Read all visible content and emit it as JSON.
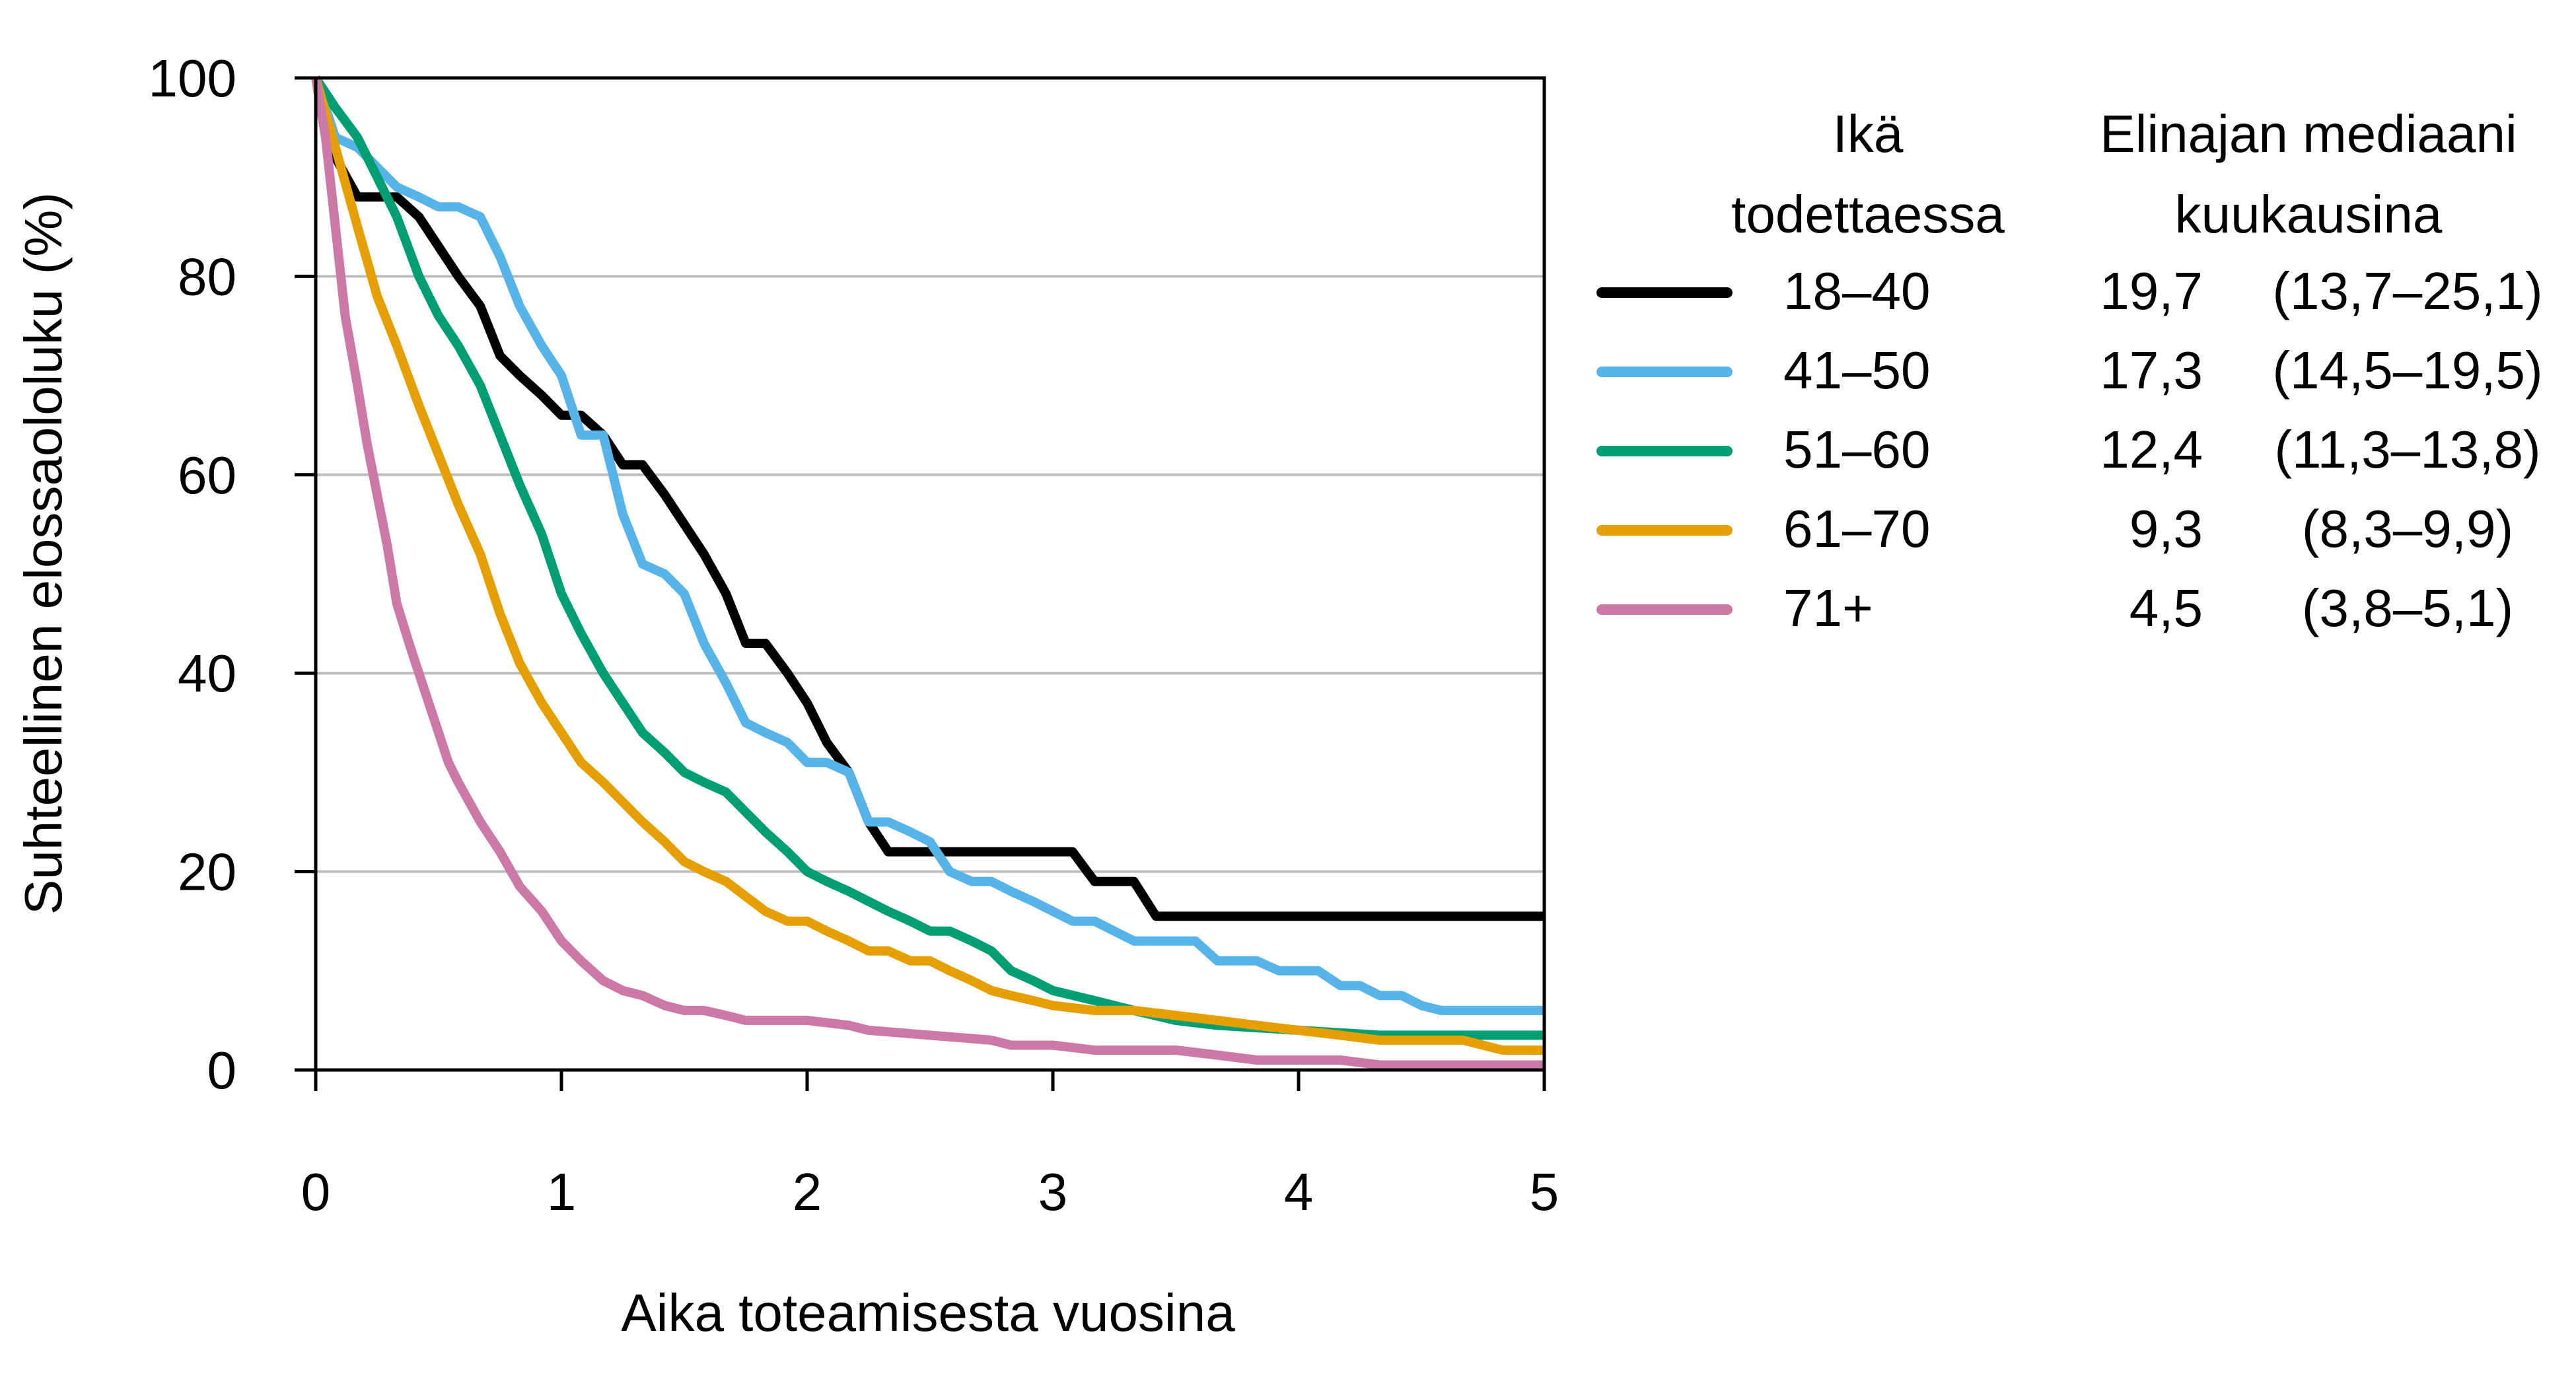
{
  "chart_data": {
    "type": "line",
    "title": "",
    "xlabel": "Aika toteamisesta vuosina",
    "ylabel": "Suhteellinen elossaololuku (%)",
    "xlim": [
      0,
      5
    ],
    "ylim": [
      0,
      100
    ],
    "xticks": [
      0,
      1,
      2,
      3,
      4,
      5
    ],
    "yticks": [
      0,
      20,
      40,
      60,
      80,
      100
    ],
    "grid": "horizontal",
    "legend": {
      "placement": "right",
      "header_age": [
        "Ikä",
        "todettaessa"
      ],
      "header_median": [
        "Elinajan mediaani",
        "kuukausina"
      ]
    },
    "series": [
      {
        "name": "18–40",
        "median": "19,7",
        "ci": "(13,7–25,1)",
        "color": "#000000",
        "x": [
          0,
          0.08,
          0.17,
          0.33,
          0.42,
          0.5,
          0.58,
          0.67,
          0.75,
          0.83,
          0.92,
          1.0,
          1.08,
          1.17,
          1.25,
          1.33,
          1.42,
          1.5,
          1.58,
          1.67,
          1.75,
          1.83,
          1.92,
          2.0,
          2.08,
          2.17,
          2.25,
          2.33,
          2.5,
          2.75,
          2.92,
          3.08,
          3.17,
          3.33,
          3.42,
          3.6,
          4.0,
          5.0
        ],
        "y": [
          100,
          92,
          88,
          88,
          86,
          83,
          80,
          77,
          72,
          70,
          68,
          66,
          66,
          64,
          61,
          61,
          58,
          55,
          52,
          48,
          43,
          43,
          40,
          37,
          33,
          30,
          25,
          22,
          22,
          22,
          22,
          22,
          19,
          19,
          15.5,
          15.5,
          15.5,
          15.5
        ]
      },
      {
        "name": "41–50",
        "median": "17,3",
        "ci": "(14,5–19,5)",
        "color": "#56B4E9",
        "x": [
          0,
          0.08,
          0.17,
          0.25,
          0.33,
          0.42,
          0.5,
          0.58,
          0.67,
          0.75,
          0.83,
          0.92,
          1.0,
          1.08,
          1.17,
          1.25,
          1.33,
          1.42,
          1.5,
          1.58,
          1.67,
          1.75,
          1.83,
          1.92,
          2.0,
          2.08,
          2.17,
          2.25,
          2.33,
          2.42,
          2.5,
          2.58,
          2.67,
          2.75,
          2.83,
          2.92,
          3.0,
          3.08,
          3.17,
          3.25,
          3.33,
          3.42,
          3.5,
          3.58,
          3.67,
          3.75,
          3.83,
          3.92,
          4.0,
          4.08,
          4.17,
          4.25,
          4.33,
          4.42,
          4.5,
          4.58,
          4.67,
          5.0
        ],
        "y": [
          100,
          94,
          93,
          91,
          89,
          88,
          87,
          87,
          86,
          82,
          77,
          73,
          70,
          64,
          64,
          56,
          51,
          50,
          48,
          43,
          39,
          35,
          34,
          33,
          31,
          31,
          30,
          25,
          25,
          24,
          23,
          20,
          19,
          19,
          18,
          17,
          16,
          15,
          15,
          14,
          13,
          13,
          13,
          13,
          11,
          11,
          11,
          10,
          10,
          10,
          8.5,
          8.5,
          7.5,
          7.5,
          6.5,
          6,
          6,
          6
        ]
      },
      {
        "name": "51–60",
        "median": "12,4",
        "ci": "(11,3–13,8)",
        "color": "#009E73",
        "x": [
          0,
          0.08,
          0.17,
          0.25,
          0.33,
          0.42,
          0.5,
          0.58,
          0.67,
          0.75,
          0.83,
          0.92,
          1.0,
          1.08,
          1.17,
          1.25,
          1.33,
          1.42,
          1.5,
          1.58,
          1.67,
          1.75,
          1.83,
          1.92,
          2.0,
          2.08,
          2.17,
          2.25,
          2.33,
          2.42,
          2.5,
          2.58,
          2.67,
          2.75,
          2.83,
          2.92,
          3.0,
          3.17,
          3.33,
          3.5,
          3.67,
          4.0,
          4.33,
          4.67,
          5.0
        ],
        "y": [
          100,
          97,
          94,
          90,
          86,
          80,
          76,
          73,
          69,
          64,
          59,
          54,
          48,
          44,
          40,
          37,
          34,
          32,
          30,
          29,
          28,
          26,
          24,
          22,
          20,
          19,
          18,
          17,
          16,
          15,
          14,
          14,
          13,
          12,
          10,
          9,
          8,
          7,
          6,
          5,
          4.5,
          4,
          3.5,
          3.5,
          3.5
        ]
      },
      {
        "name": "61–70",
        "median": "9,3",
        "ci": "(8,3–9,9)",
        "color": "#E69F00",
        "x": [
          0,
          0.08,
          0.17,
          0.25,
          0.33,
          0.42,
          0.5,
          0.58,
          0.67,
          0.75,
          0.83,
          0.92,
          1.0,
          1.08,
          1.17,
          1.25,
          1.33,
          1.42,
          1.5,
          1.58,
          1.67,
          1.75,
          1.83,
          1.92,
          2.0,
          2.08,
          2.17,
          2.25,
          2.33,
          2.42,
          2.5,
          2.58,
          2.67,
          2.75,
          2.83,
          2.92,
          3.0,
          3.17,
          3.33,
          3.5,
          3.67,
          3.83,
          4.0,
          4.17,
          4.33,
          4.67,
          4.83,
          5.0
        ],
        "y": [
          100,
          93,
          85,
          78,
          73,
          67,
          62,
          57,
          52,
          46,
          41,
          37,
          34,
          31,
          29,
          27,
          25,
          23,
          21,
          20,
          19,
          17.5,
          16,
          15,
          15,
          14,
          13,
          12,
          12,
          11,
          11,
          10,
          9,
          8,
          7.5,
          7,
          6.5,
          6,
          6,
          5.5,
          5,
          4.5,
          4,
          3.5,
          3,
          3,
          2,
          2
        ]
      },
      {
        "name": "71+",
        "median": "4,5",
        "ci": "(3,8–5,1)",
        "color": "#CC79A7",
        "x": [
          0,
          0.04,
          0.08,
          0.12,
          0.17,
          0.21,
          0.25,
          0.29,
          0.33,
          0.38,
          0.42,
          0.46,
          0.5,
          0.54,
          0.58,
          0.67,
          0.75,
          0.83,
          0.92,
          1.0,
          1.08,
          1.17,
          1.25,
          1.33,
          1.42,
          1.5,
          1.58,
          1.67,
          1.75,
          1.83,
          2.0,
          2.17,
          2.25,
          2.5,
          2.75,
          2.83,
          3.0,
          3.17,
          3.5,
          3.67,
          3.83,
          4.0,
          4.17,
          4.33,
          4.67,
          5.0
        ],
        "y": [
          100,
          94,
          85,
          76,
          69,
          63,
          58,
          53,
          47,
          43,
          40,
          37,
          34,
          31,
          29,
          25,
          22,
          18.5,
          16,
          13,
          11,
          9,
          8,
          7.5,
          6.5,
          6,
          6,
          5.5,
          5,
          5,
          5,
          4.5,
          4,
          3.5,
          3,
          2.5,
          2.5,
          2,
          2,
          1.5,
          1,
          1,
          1,
          0.5,
          0.5,
          0.5
        ]
      }
    ]
  }
}
